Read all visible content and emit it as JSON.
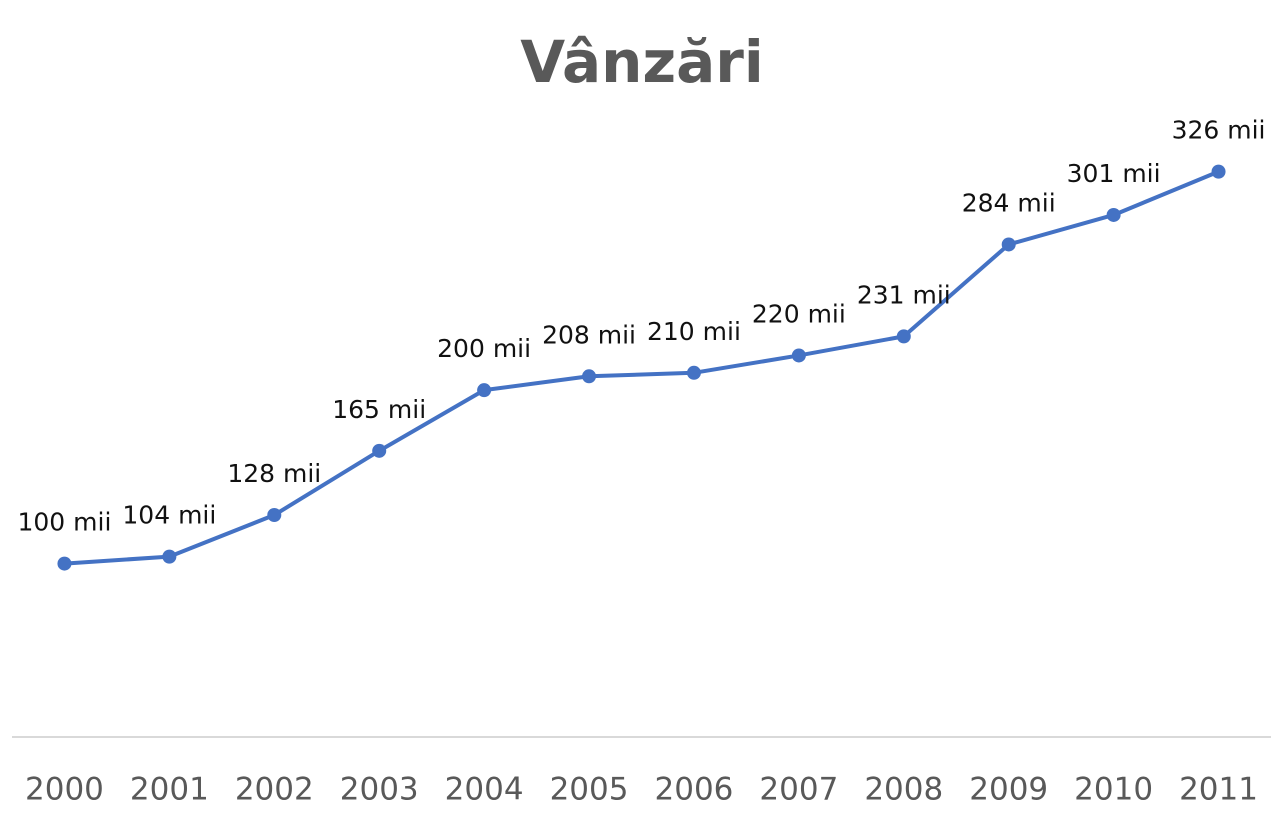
{
  "chart_data": {
    "type": "line",
    "title": "Vânzări",
    "categories": [
      "2000",
      "2001",
      "2002",
      "2003",
      "2004",
      "2005",
      "2006",
      "2007",
      "2008",
      "2009",
      "2010",
      "2011"
    ],
    "values": [
      100,
      104,
      128,
      165,
      200,
      208,
      210,
      220,
      231,
      284,
      301,
      326
    ],
    "value_labels": [
      "100 mii",
      "104 mii",
      "128 mii",
      "165 mii",
      "200 mii",
      "208 mii",
      "210 mii",
      "220 mii",
      "231 mii",
      "284 mii",
      "301 mii",
      "326 mii"
    ],
    "color": "#4472c4",
    "ylim": [
      0,
      350
    ]
  }
}
